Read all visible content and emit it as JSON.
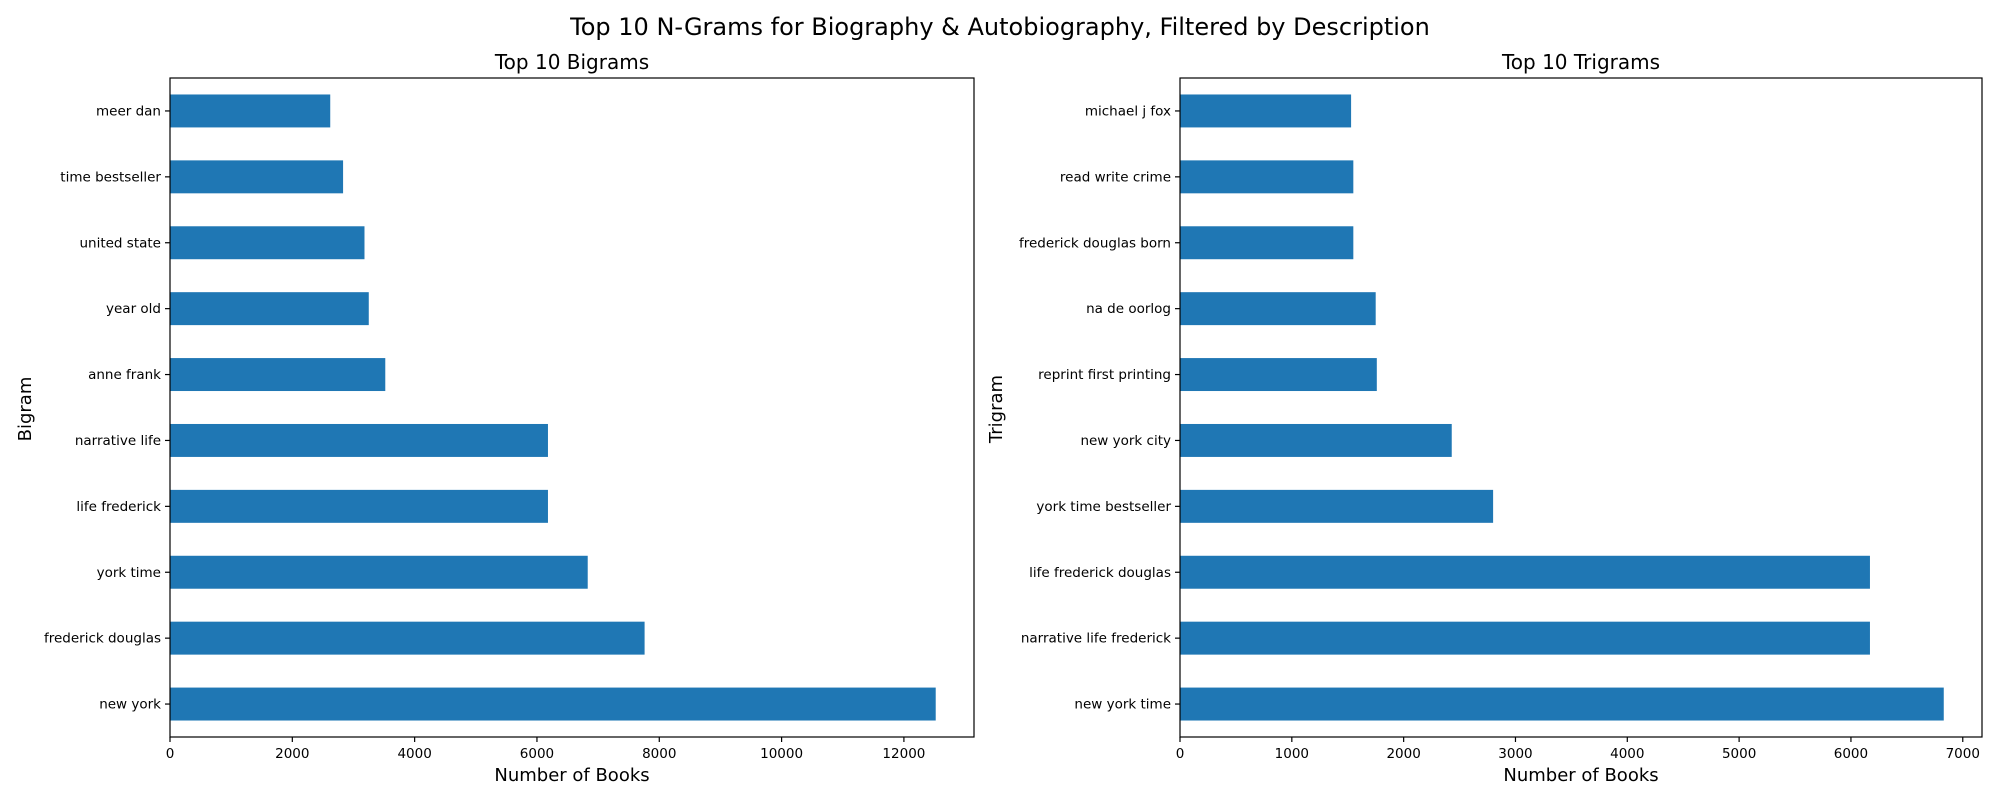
{
  "figure": {
    "suptitle": "Top 10 N-Grams for Biography & Autobiography, Filtered by Description"
  },
  "chart_data": [
    {
      "type": "bar",
      "orientation": "horizontal",
      "title": "Top 10 Bigrams",
      "xlabel": "Number of Books",
      "ylabel": "Bigram",
      "categories": [
        "new york",
        "frederick douglas",
        "york time",
        "life frederick",
        "narrative life",
        "anne frank",
        "year old",
        "united state",
        "time bestseller",
        "meer dan"
      ],
      "values": [
        12520,
        7760,
        6830,
        6180,
        6180,
        3520,
        3250,
        3180,
        2830,
        2620
      ],
      "xlim": [
        0,
        13146
      ],
      "xticks": [
        0,
        2000,
        4000,
        6000,
        8000,
        10000,
        12000
      ],
      "color": "#1f77b4",
      "grid": false,
      "legend": false
    },
    {
      "type": "bar",
      "orientation": "horizontal",
      "title": "Top 10 Trigrams",
      "xlabel": "Number of Books",
      "ylabel": "Trigram",
      "categories": [
        "new york time",
        "narrative life frederick",
        "life frederick douglas",
        "york time bestseller",
        "new york city",
        "reprint first printing",
        "na de oorlog",
        "frederick douglas born",
        "read write crime",
        "michael j fox"
      ],
      "values": [
        6830,
        6170,
        6170,
        2800,
        2430,
        1760,
        1750,
        1550,
        1550,
        1530
      ],
      "xlim": [
        0,
        7172
      ],
      "xticks": [
        0,
        1000,
        2000,
        3000,
        4000,
        5000,
        6000,
        7000
      ],
      "color": "#1f77b4",
      "grid": false,
      "legend": false
    }
  ]
}
